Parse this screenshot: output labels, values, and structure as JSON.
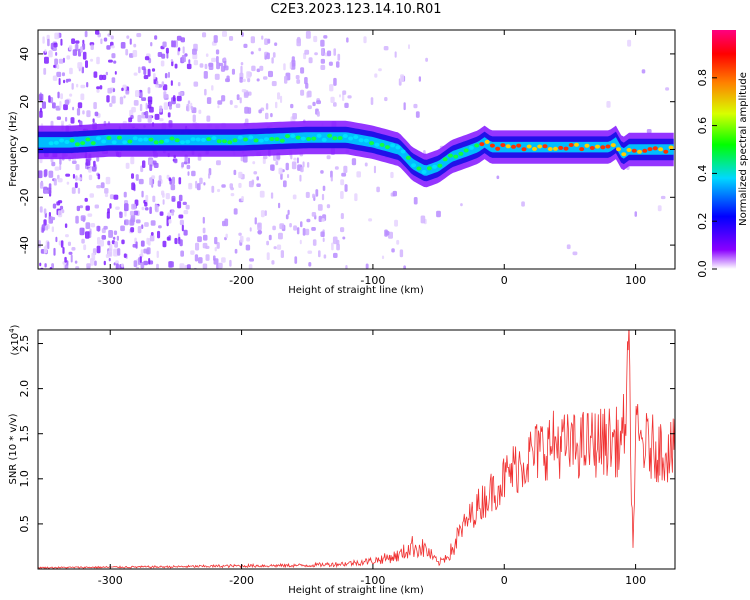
{
  "title": "C2E3.2023.123.14.10.R01",
  "colors": {
    "snr_line": "#f03232",
    "axis": "#000000"
  },
  "chart_data": [
    {
      "type": "heatmap",
      "title": "C2E3.2023.123.14.10.R01",
      "xlabel": "Height of straight line (km)",
      "ylabel": "Frequency (Hz)",
      "xlim": [
        -355,
        130
      ],
      "ylim": [
        -50,
        50
      ],
      "xticks": [
        -300,
        -200,
        -100,
        0,
        100
      ],
      "yticks": [
        -40,
        -20,
        0,
        20,
        40
      ],
      "colorbar": {
        "label": "Normalized spectral amplitude",
        "range": [
          0.0,
          1.0
        ],
        "ticks": [
          0.0,
          0.2,
          0.4,
          0.6,
          0.8
        ],
        "tick_labels": [
          "0.0",
          "0.2",
          "0.4",
          "0.6",
          "0.8"
        ],
        "colormap": "rainbow"
      },
      "ridge": {
        "x": [
          -330,
          -300,
          -250,
          -200,
          -150,
          -120,
          -100,
          -80,
          -70,
          -60,
          -50,
          -40,
          -30,
          -20,
          -15,
          -10,
          0,
          50,
          80,
          85,
          90,
          95,
          130
        ],
        "y": [
          3,
          4,
          4,
          4,
          5,
          5,
          3,
          0,
          -6,
          -9,
          -7,
          -3,
          -1,
          1,
          3,
          1,
          1,
          1,
          1,
          3,
          -2,
          0,
          0
        ]
      }
    },
    {
      "type": "line",
      "xlabel": "Height of straight line (km)",
      "ylabel": "SNR (10 * v/v)",
      "y_multiplier_label": "(x10",
      "y_multiplier_exp": "4",
      "y_multiplier_close": ")",
      "xlim": [
        -355,
        130
      ],
      "ylim": [
        0,
        26500
      ],
      "xticks": [
        -300,
        -200,
        -100,
        0,
        100
      ],
      "yticks": [
        5000,
        10000,
        15000,
        20000,
        25000
      ],
      "ytick_labels": [
        "0.5",
        "1.0",
        "1.5",
        "2.0",
        "2.5"
      ],
      "series": [
        {
          "color": "#f03232",
          "x": [
            -355,
            -300,
            -250,
            -200,
            -150,
            -120,
            -100,
            -80,
            -70,
            -60,
            -50,
            -40,
            -30,
            -20,
            -10,
            0,
            10,
            20,
            30,
            40,
            50,
            60,
            70,
            80,
            90,
            95,
            98,
            100,
            110,
            130
          ],
          "y": [
            150,
            200,
            250,
            350,
            400,
            600,
            900,
            1500,
            2500,
            2200,
            600,
            2000,
            5000,
            7000,
            8500,
            10000,
            11500,
            12500,
            13500,
            14000,
            13500,
            13800,
            14000,
            14200,
            14000,
            22000,
            2000,
            14500,
            13500,
            13000
          ]
        }
      ]
    }
  ]
}
